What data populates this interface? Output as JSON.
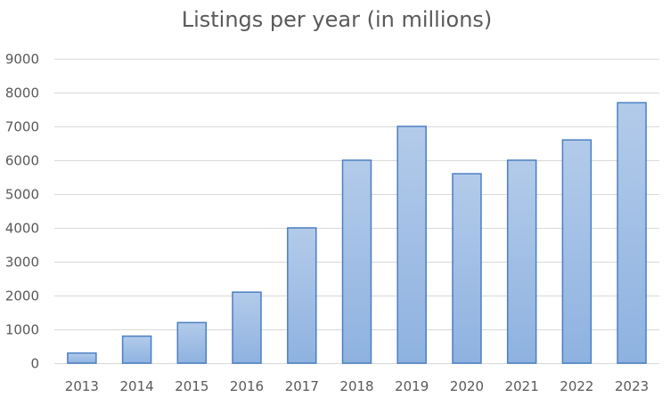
{
  "chart_data": {
    "type": "bar",
    "title": "Listings per year (in millions)",
    "xlabel": "",
    "ylabel": "",
    "categories": [
      "2013",
      "2014",
      "2015",
      "2016",
      "2017",
      "2018",
      "2019",
      "2020",
      "2021",
      "2022",
      "2023"
    ],
    "values": [
      300,
      800,
      1200,
      2100,
      4000,
      6000,
      7000,
      5600,
      6000,
      6600,
      7700
    ],
    "ylim": [
      0,
      9000
    ],
    "yticks": [
      0,
      1000,
      2000,
      3000,
      4000,
      5000,
      6000,
      7000,
      8000,
      9000
    ],
    "grid": true,
    "legend": "none",
    "colors": {
      "bar_top": "#b3cbea",
      "bar_bottom": "#8eb2e0",
      "bar_border": "#4a7fc1",
      "gridline": "#d9d9d9",
      "text": "#595959"
    }
  }
}
